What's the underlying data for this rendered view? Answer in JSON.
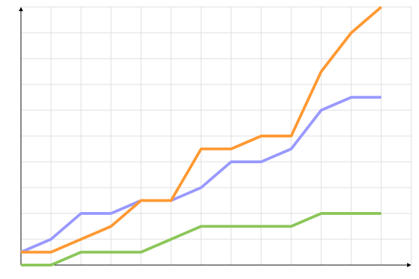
{
  "chart_data": {
    "type": "line",
    "title": "",
    "xlabel": "",
    "ylabel": "",
    "x": [
      0,
      1,
      2,
      3,
      4,
      5,
      6,
      7,
      8,
      9,
      10,
      11,
      12
    ],
    "xlim": [
      0,
      13
    ],
    "ylim": [
      0,
      10
    ],
    "grid": true,
    "legend": "none",
    "series": [
      {
        "color": "#9999ff",
        "values": [
          0.5,
          1,
          2,
          2,
          2.5,
          2.5,
          3,
          4,
          4,
          4.5,
          6,
          6.5,
          6.5
        ]
      },
      {
        "color": "#ff9933",
        "values": [
          0.5,
          0.5,
          1,
          1.5,
          2.5,
          2.5,
          4.5,
          4.5,
          5,
          5,
          7.5,
          9,
          10
        ]
      },
      {
        "color": "#8cc65a",
        "values": [
          0,
          0,
          0.5,
          0.5,
          0.5,
          1,
          1.5,
          1.5,
          1.5,
          1.5,
          2,
          2,
          2
        ]
      }
    ]
  }
}
